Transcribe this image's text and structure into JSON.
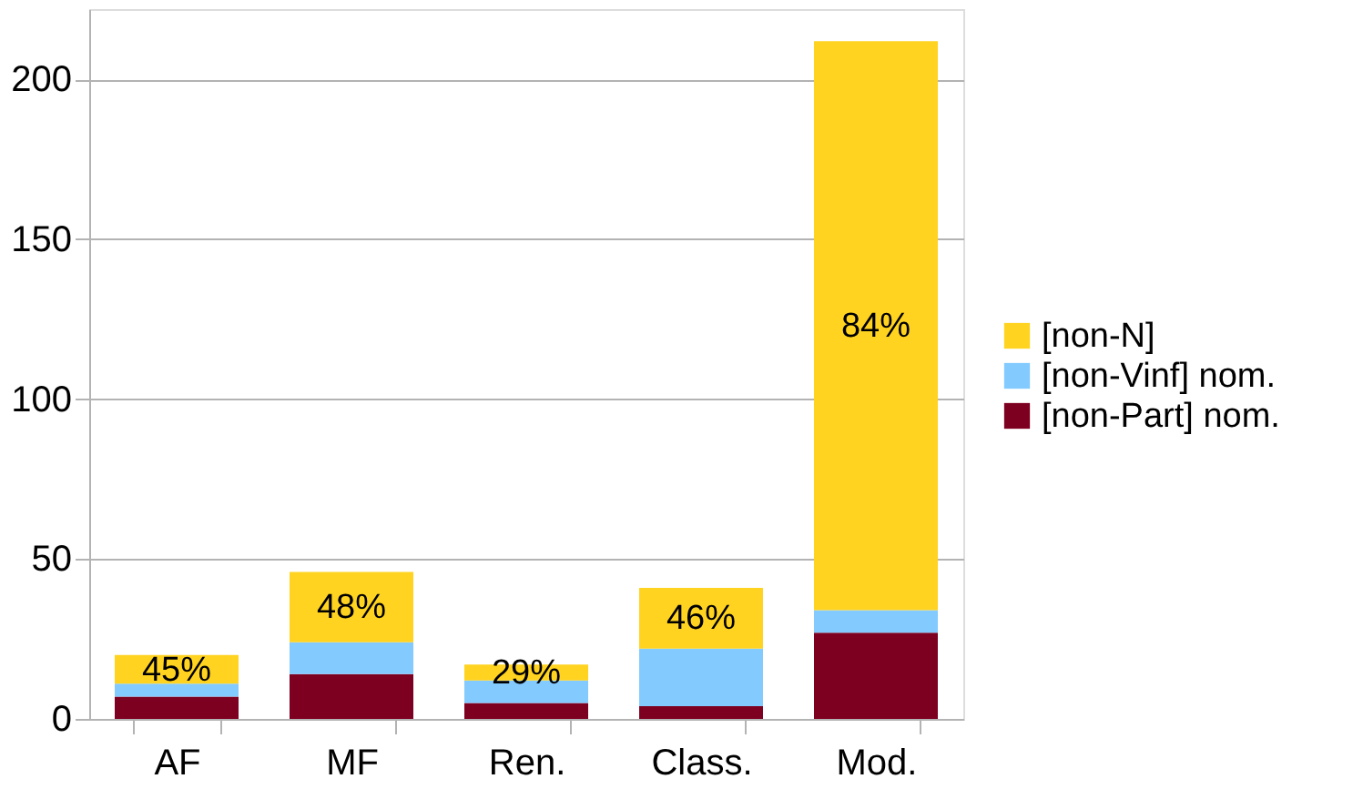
{
  "chart_data": {
    "type": "bar",
    "stacked": true,
    "categories": [
      "AF",
      "MF",
      "Ren.",
      "Class.",
      "Mod."
    ],
    "series": [
      {
        "name": "[non-Part] nom.",
        "color": "#7e0021",
        "values": [
          7,
          14,
          5,
          4,
          27
        ]
      },
      {
        "name": "[non-Vinf] nom.",
        "color": "#83caff",
        "values": [
          4,
          10,
          7,
          18,
          7
        ]
      },
      {
        "name": "[non-N]",
        "color": "#ffd320",
        "values": [
          9,
          22,
          5,
          19,
          178
        ]
      }
    ],
    "annotations": [
      "45%",
      "48%",
      "29%",
      "46%",
      "84%"
    ],
    "ylim": [
      0,
      222
    ],
    "yticks": [
      0,
      50,
      100,
      150,
      200
    ],
    "grid": "y",
    "legend": "right"
  }
}
